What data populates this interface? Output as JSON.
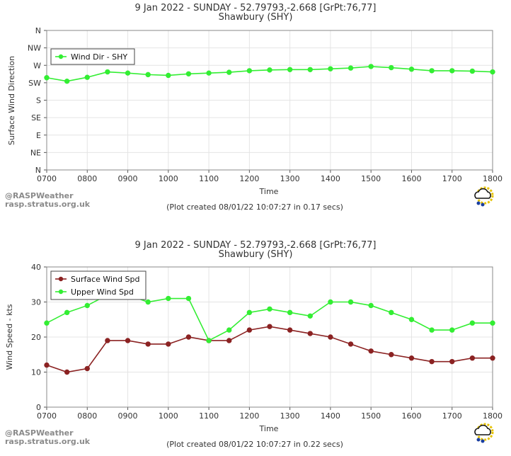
{
  "chart_data": [
    {
      "type": "line",
      "title": "9 Jan 2022 - SUNDAY - 52.79793,-2.668 [GrPt:76,77]",
      "subtitle": "Shawbury (SHY)",
      "xlabel": "Time",
      "ylabel": "Surface Wind Direction",
      "x": [
        "0700",
        "0730",
        "0800",
        "0830",
        "0900",
        "0930",
        "1000",
        "1030",
        "1100",
        "1130",
        "1200",
        "1230",
        "1300",
        "1330",
        "1400",
        "1430",
        "1500",
        "1530",
        "1600",
        "1630",
        "1700",
        "1730",
        "1800"
      ],
      "x_ticks": [
        "0700",
        "0800",
        "0900",
        "1000",
        "1100",
        "1200",
        "1300",
        "1400",
        "1500",
        "1600",
        "1700",
        "1800"
      ],
      "y_tick_labels": [
        "N",
        "NE",
        "E",
        "SE",
        "S",
        "SW",
        "W",
        "NW",
        "N"
      ],
      "ylim": [
        0,
        360
      ],
      "grid": true,
      "legend_position": "top-left",
      "series": [
        {
          "name": "Wind Dir - SHY",
          "color": "#33ee33",
          "values": [
            238,
            229,
            239,
            253,
            250,
            246,
            244,
            248,
            250,
            252,
            256,
            258,
            259,
            259,
            261,
            263,
            267,
            264,
            260,
            256,
            256,
            255,
            253
          ]
        }
      ],
      "credit_line1": "@RASPWeather",
      "credit_line2": "rasp.stratus.org.uk",
      "footer": "(Plot created 08/01/22 10:07:27 in 0.17 secs)"
    },
    {
      "type": "line",
      "title": "9 Jan 2022 - SUNDAY - 52.79793,-2.668 [GrPt:76,77]",
      "subtitle": "Shawbury (SHY)",
      "xlabel": "Time",
      "ylabel": "Wind Speed - kts",
      "x": [
        "0700",
        "0730",
        "0800",
        "0830",
        "0900",
        "0930",
        "1000",
        "1030",
        "1100",
        "1130",
        "1200",
        "1230",
        "1300",
        "1330",
        "1400",
        "1430",
        "1500",
        "1530",
        "1600",
        "1630",
        "1700",
        "1730",
        "1800"
      ],
      "x_ticks": [
        "0700",
        "0800",
        "0900",
        "1000",
        "1100",
        "1200",
        "1300",
        "1400",
        "1500",
        "1600",
        "1700",
        "1800"
      ],
      "y_ticks": [
        "0",
        "10",
        "20",
        "30",
        "40"
      ],
      "ylim": [
        0,
        40
      ],
      "grid": true,
      "legend_position": "top-left",
      "series": [
        {
          "name": "Surface Wind Spd",
          "color": "#8b2222",
          "values": [
            12,
            10,
            11,
            19,
            19,
            18,
            18,
            20,
            19,
            19,
            22,
            23,
            22,
            21,
            20,
            18,
            16,
            15,
            14,
            13,
            13,
            14,
            14
          ]
        },
        {
          "name": "Upper Wind Spd",
          "color": "#33ee33",
          "values": [
            24,
            27,
            29,
            32,
            32,
            30,
            31,
            31,
            19,
            22,
            27,
            28,
            27,
            26,
            30,
            30,
            29,
            27,
            25,
            22,
            22,
            24,
            24
          ]
        }
      ],
      "credit_line1": "@RASPWeather",
      "credit_line2": "rasp.stratus.org.uk",
      "footer": "(Plot created 08/01/22 10:07:27 in 0.22 secs)"
    }
  ]
}
